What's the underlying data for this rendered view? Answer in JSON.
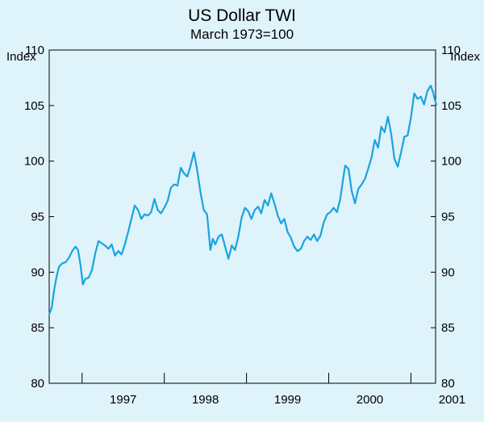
{
  "chart_data": {
    "type": "line",
    "title": "US Dollar TWI",
    "subtitle": "March 1973=100",
    "ylabel_left": "Index",
    "ylabel_right": "Index",
    "ylim": [
      80,
      110
    ],
    "yticks": [
      110,
      105,
      100,
      95,
      90,
      85,
      80
    ],
    "xlim": [
      1996.6,
      2001.3
    ],
    "xtick_labels": [
      "1997",
      "1998",
      "1999",
      "2000",
      "2001"
    ],
    "year_boundaries": [
      1997.0,
      1998.0,
      1999.0,
      2000.0,
      2001.0
    ],
    "grid": false,
    "series": [
      {
        "name": "US Dollar TWI",
        "color": "#1aa3e0",
        "points": [
          [
            1996.6,
            86.2
          ],
          [
            1996.63,
            86.8
          ],
          [
            1996.66,
            88.4
          ],
          [
            1996.69,
            89.6
          ],
          [
            1996.72,
            90.5
          ],
          [
            1996.76,
            90.8
          ],
          [
            1996.8,
            90.9
          ],
          [
            1996.84,
            91.3
          ],
          [
            1996.88,
            91.9
          ],
          [
            1996.92,
            92.3
          ],
          [
            1996.95,
            92.0
          ],
          [
            1996.98,
            90.7
          ],
          [
            1997.01,
            88.9
          ],
          [
            1997.04,
            89.4
          ],
          [
            1997.08,
            89.5
          ],
          [
            1997.12,
            90.2
          ],
          [
            1997.16,
            91.7
          ],
          [
            1997.2,
            92.8
          ],
          [
            1997.24,
            92.6
          ],
          [
            1997.28,
            92.4
          ],
          [
            1997.32,
            92.1
          ],
          [
            1997.36,
            92.5
          ],
          [
            1997.4,
            91.5
          ],
          [
            1997.44,
            91.9
          ],
          [
            1997.48,
            91.6
          ],
          [
            1997.52,
            92.5
          ],
          [
            1997.56,
            93.6
          ],
          [
            1997.6,
            94.8
          ],
          [
            1997.64,
            96.0
          ],
          [
            1997.68,
            95.6
          ],
          [
            1997.72,
            94.8
          ],
          [
            1997.76,
            95.2
          ],
          [
            1997.8,
            95.1
          ],
          [
            1997.84,
            95.4
          ],
          [
            1997.88,
            96.6
          ],
          [
            1997.92,
            95.6
          ],
          [
            1997.96,
            95.3
          ],
          [
            1998.0,
            95.8
          ],
          [
            1998.04,
            96.4
          ],
          [
            1998.08,
            97.6
          ],
          [
            1998.12,
            97.9
          ],
          [
            1998.16,
            97.8
          ],
          [
            1998.2,
            99.4
          ],
          [
            1998.24,
            98.9
          ],
          [
            1998.28,
            98.6
          ],
          [
            1998.32,
            99.6
          ],
          [
            1998.36,
            100.8
          ],
          [
            1998.4,
            99.2
          ],
          [
            1998.44,
            97.2
          ],
          [
            1998.48,
            95.6
          ],
          [
            1998.52,
            95.2
          ],
          [
            1998.56,
            92.0
          ],
          [
            1998.59,
            93.0
          ],
          [
            1998.62,
            92.5
          ],
          [
            1998.66,
            93.2
          ],
          [
            1998.7,
            93.4
          ],
          [
            1998.74,
            92.3
          ],
          [
            1998.78,
            91.2
          ],
          [
            1998.82,
            92.4
          ],
          [
            1998.86,
            92.0
          ],
          [
            1998.9,
            93.2
          ],
          [
            1998.94,
            94.9
          ],
          [
            1998.98,
            95.8
          ],
          [
            1999.02,
            95.5
          ],
          [
            1999.06,
            94.8
          ],
          [
            1999.1,
            95.6
          ],
          [
            1999.14,
            95.9
          ],
          [
            1999.18,
            95.3
          ],
          [
            1999.22,
            96.5
          ],
          [
            1999.26,
            96.0
          ],
          [
            1999.3,
            97.1
          ],
          [
            1999.34,
            96.2
          ],
          [
            1999.38,
            95.1
          ],
          [
            1999.42,
            94.4
          ],
          [
            1999.46,
            94.8
          ],
          [
            1999.5,
            93.6
          ],
          [
            1999.54,
            93.1
          ],
          [
            1999.58,
            92.3
          ],
          [
            1999.62,
            91.9
          ],
          [
            1999.66,
            92.1
          ],
          [
            1999.7,
            92.8
          ],
          [
            1999.74,
            93.2
          ],
          [
            1999.78,
            92.9
          ],
          [
            1999.82,
            93.4
          ],
          [
            1999.86,
            92.8
          ],
          [
            1999.9,
            93.3
          ],
          [
            1999.94,
            94.5
          ],
          [
            1999.98,
            95.2
          ],
          [
            2000.02,
            95.4
          ],
          [
            2000.06,
            95.8
          ],
          [
            2000.1,
            95.4
          ],
          [
            2000.14,
            96.6
          ],
          [
            2000.17,
            98.1
          ],
          [
            2000.2,
            99.6
          ],
          [
            2000.24,
            99.3
          ],
          [
            2000.28,
            97.3
          ],
          [
            2000.32,
            96.2
          ],
          [
            2000.36,
            97.5
          ],
          [
            2000.4,
            97.9
          ],
          [
            2000.44,
            98.4
          ],
          [
            2000.48,
            99.3
          ],
          [
            2000.52,
            100.3
          ],
          [
            2000.56,
            101.9
          ],
          [
            2000.6,
            101.2
          ],
          [
            2000.64,
            103.1
          ],
          [
            2000.68,
            102.6
          ],
          [
            2000.72,
            104.0
          ],
          [
            2000.76,
            102.4
          ],
          [
            2000.8,
            100.2
          ],
          [
            2000.84,
            99.5
          ],
          [
            2000.88,
            100.8
          ],
          [
            2000.92,
            102.2
          ],
          [
            2000.96,
            102.3
          ],
          [
            2001.0,
            103.9
          ],
          [
            2001.04,
            106.1
          ],
          [
            2001.08,
            105.6
          ],
          [
            2001.12,
            105.8
          ],
          [
            2001.16,
            105.1
          ],
          [
            2001.2,
            106.3
          ],
          [
            2001.24,
            106.8
          ],
          [
            2001.27,
            106.2
          ],
          [
            2001.29,
            105.5
          ],
          [
            2001.31,
            105.1
          ]
        ]
      }
    ]
  }
}
